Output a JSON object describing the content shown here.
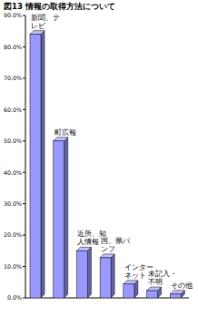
{
  "chart_data": {
    "type": "bar",
    "title": "図13 情報の取得方法について",
    "categories": [
      "新聞、テレビ",
      "町広報",
      "近所、知人情報",
      "国、県パンフ",
      "インターネット",
      "未記入・不明",
      "その他"
    ],
    "values": [
      84,
      50,
      15,
      12.8,
      4.4,
      2.3,
      1.2
    ],
    "color": "#9999ff",
    "ylim": [
      0,
      90
    ],
    "yticks": [
      {
        "value": 0,
        "label": "0.0%"
      },
      {
        "value": 10,
        "label": "10.0%"
      },
      {
        "value": 20,
        "label": "20.0%"
      },
      {
        "value": 30,
        "label": "30.0%"
      },
      {
        "value": 40,
        "label": "40.0%"
      },
      {
        "value": 50,
        "label": "50.0%"
      },
      {
        "value": 60,
        "label": "60.0%"
      },
      {
        "value": 70,
        "label": "70.0%"
      },
      {
        "value": 80,
        "label": "80.0%"
      },
      {
        "value": 90,
        "label": "90.0%"
      }
    ],
    "grid": false
  }
}
